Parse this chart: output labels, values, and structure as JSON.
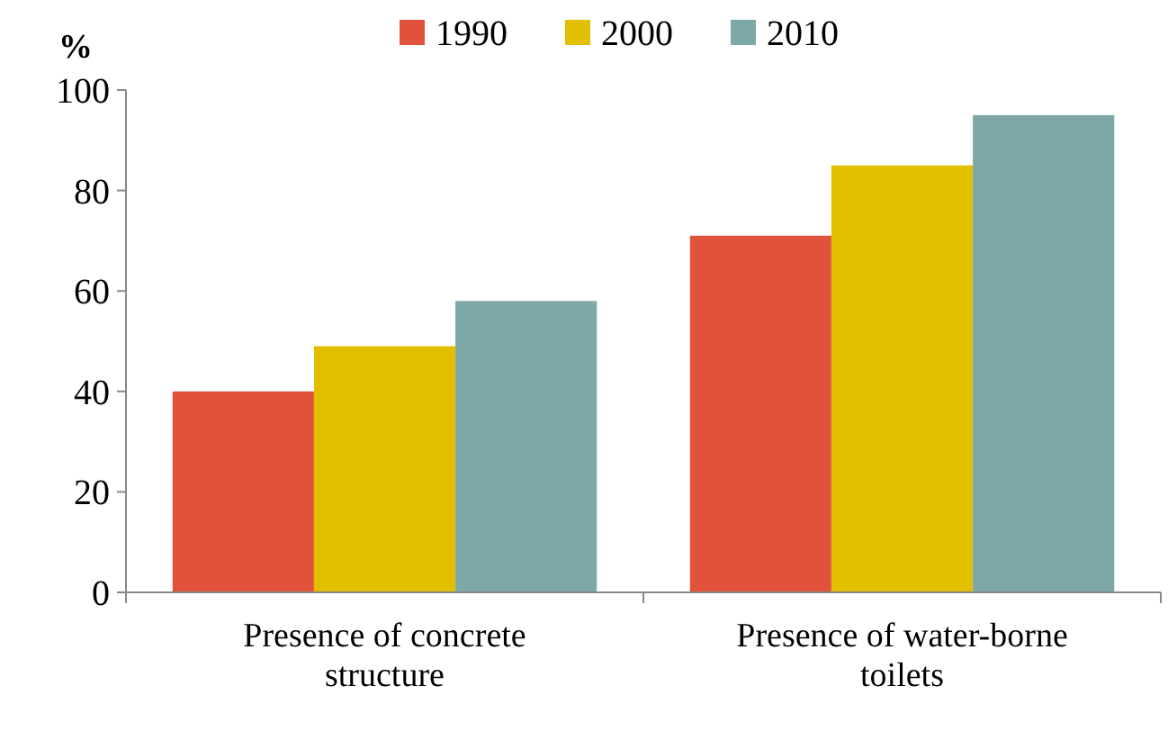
{
  "chart_data": {
    "type": "bar",
    "ylabel": "%",
    "categories": [
      "Presence of concrete structure",
      "Presence of water-borne toilets"
    ],
    "series": [
      {
        "name": "1990",
        "color": "#e0533a",
        "values": [
          40,
          71
        ]
      },
      {
        "name": "2000",
        "color": "#e2c000",
        "values": [
          49,
          85
        ]
      },
      {
        "name": "2010",
        "color": "#7ea8a8",
        "values": [
          58,
          95
        ]
      }
    ],
    "ylim": [
      0,
      100
    ],
    "yticks": [
      0,
      20,
      40,
      60,
      80,
      100
    ],
    "legend": "top",
    "grid": false
  }
}
